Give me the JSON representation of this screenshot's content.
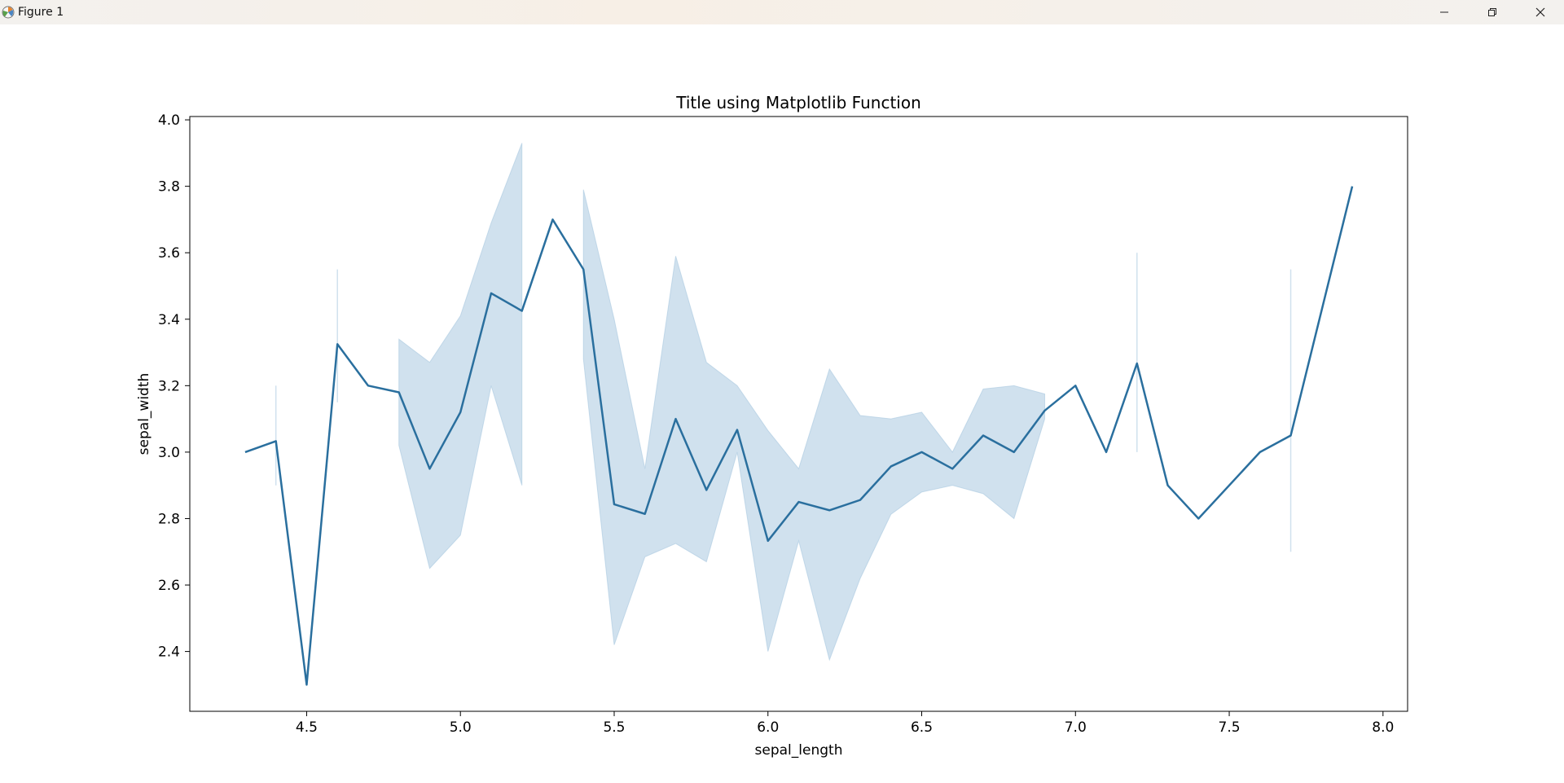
{
  "window": {
    "title": "Figure 1"
  },
  "controls": {
    "minimize_icon": "minimize-icon",
    "restore_icon": "restore-icon",
    "close_icon": "close-icon"
  },
  "colors": {
    "line": "#2a6f9e",
    "band": "#a9c8e0"
  },
  "chart_data": {
    "type": "line",
    "title": "Title using Matplotlib Function",
    "xlabel": "sepal_length",
    "ylabel": "sepal_width",
    "xlim": [
      4.12,
      8.08
    ],
    "ylim": [
      2.22,
      4.01
    ],
    "xticks": [
      4.5,
      5.0,
      5.5,
      6.0,
      6.5,
      7.0,
      7.5,
      8.0
    ],
    "yticks": [
      2.4,
      2.6,
      2.8,
      3.0,
      3.2,
      3.4,
      3.6,
      3.8,
      4.0
    ],
    "grid": false,
    "x": [
      4.3,
      4.4,
      4.5,
      4.6,
      4.7,
      4.8,
      4.9,
      5.0,
      5.1,
      5.2,
      5.3,
      5.4,
      5.5,
      5.6,
      5.7,
      5.8,
      5.9,
      6.0,
      6.1,
      6.2,
      6.3,
      6.4,
      6.5,
      6.6,
      6.7,
      6.8,
      6.9,
      7.0,
      7.1,
      7.2,
      7.3,
      7.4,
      7.6,
      7.7,
      7.9
    ],
    "y": [
      3.0,
      3.033,
      2.3,
      3.325,
      3.2,
      3.18,
      2.95,
      3.12,
      3.478,
      3.425,
      3.7,
      3.55,
      2.843,
      2.814,
      3.1,
      2.886,
      3.067,
      2.733,
      2.85,
      2.825,
      2.856,
      2.957,
      3.0,
      2.95,
      3.05,
      3.0,
      3.125,
      3.2,
      3.0,
      3.267,
      2.9,
      2.8,
      3.0,
      3.05,
      3.8
    ],
    "ci_low": [
      3.0,
      2.9,
      2.3,
      3.15,
      3.2,
      3.02,
      2.65,
      2.75,
      3.2,
      2.9,
      3.7,
      3.28,
      2.42,
      2.685,
      2.725,
      2.67,
      3.0,
      2.4,
      2.733,
      2.375,
      2.62,
      2.813,
      2.88,
      2.9,
      2.875,
      2.8,
      3.1,
      3.2,
      3.0,
      3.0,
      2.9,
      2.8,
      3.0,
      2.7,
      3.8
    ],
    "ci_high": [
      3.0,
      3.2,
      2.3,
      3.55,
      3.2,
      3.34,
      3.27,
      3.41,
      3.69,
      3.93,
      3.7,
      3.79,
      3.4,
      2.95,
      3.59,
      3.27,
      3.2,
      3.065,
      2.95,
      3.25,
      3.11,
      3.1,
      3.12,
      3.0,
      3.19,
      3.2,
      3.175,
      3.2,
      3.0,
      3.6,
      2.9,
      2.8,
      3.0,
      3.55,
      3.8
    ]
  }
}
